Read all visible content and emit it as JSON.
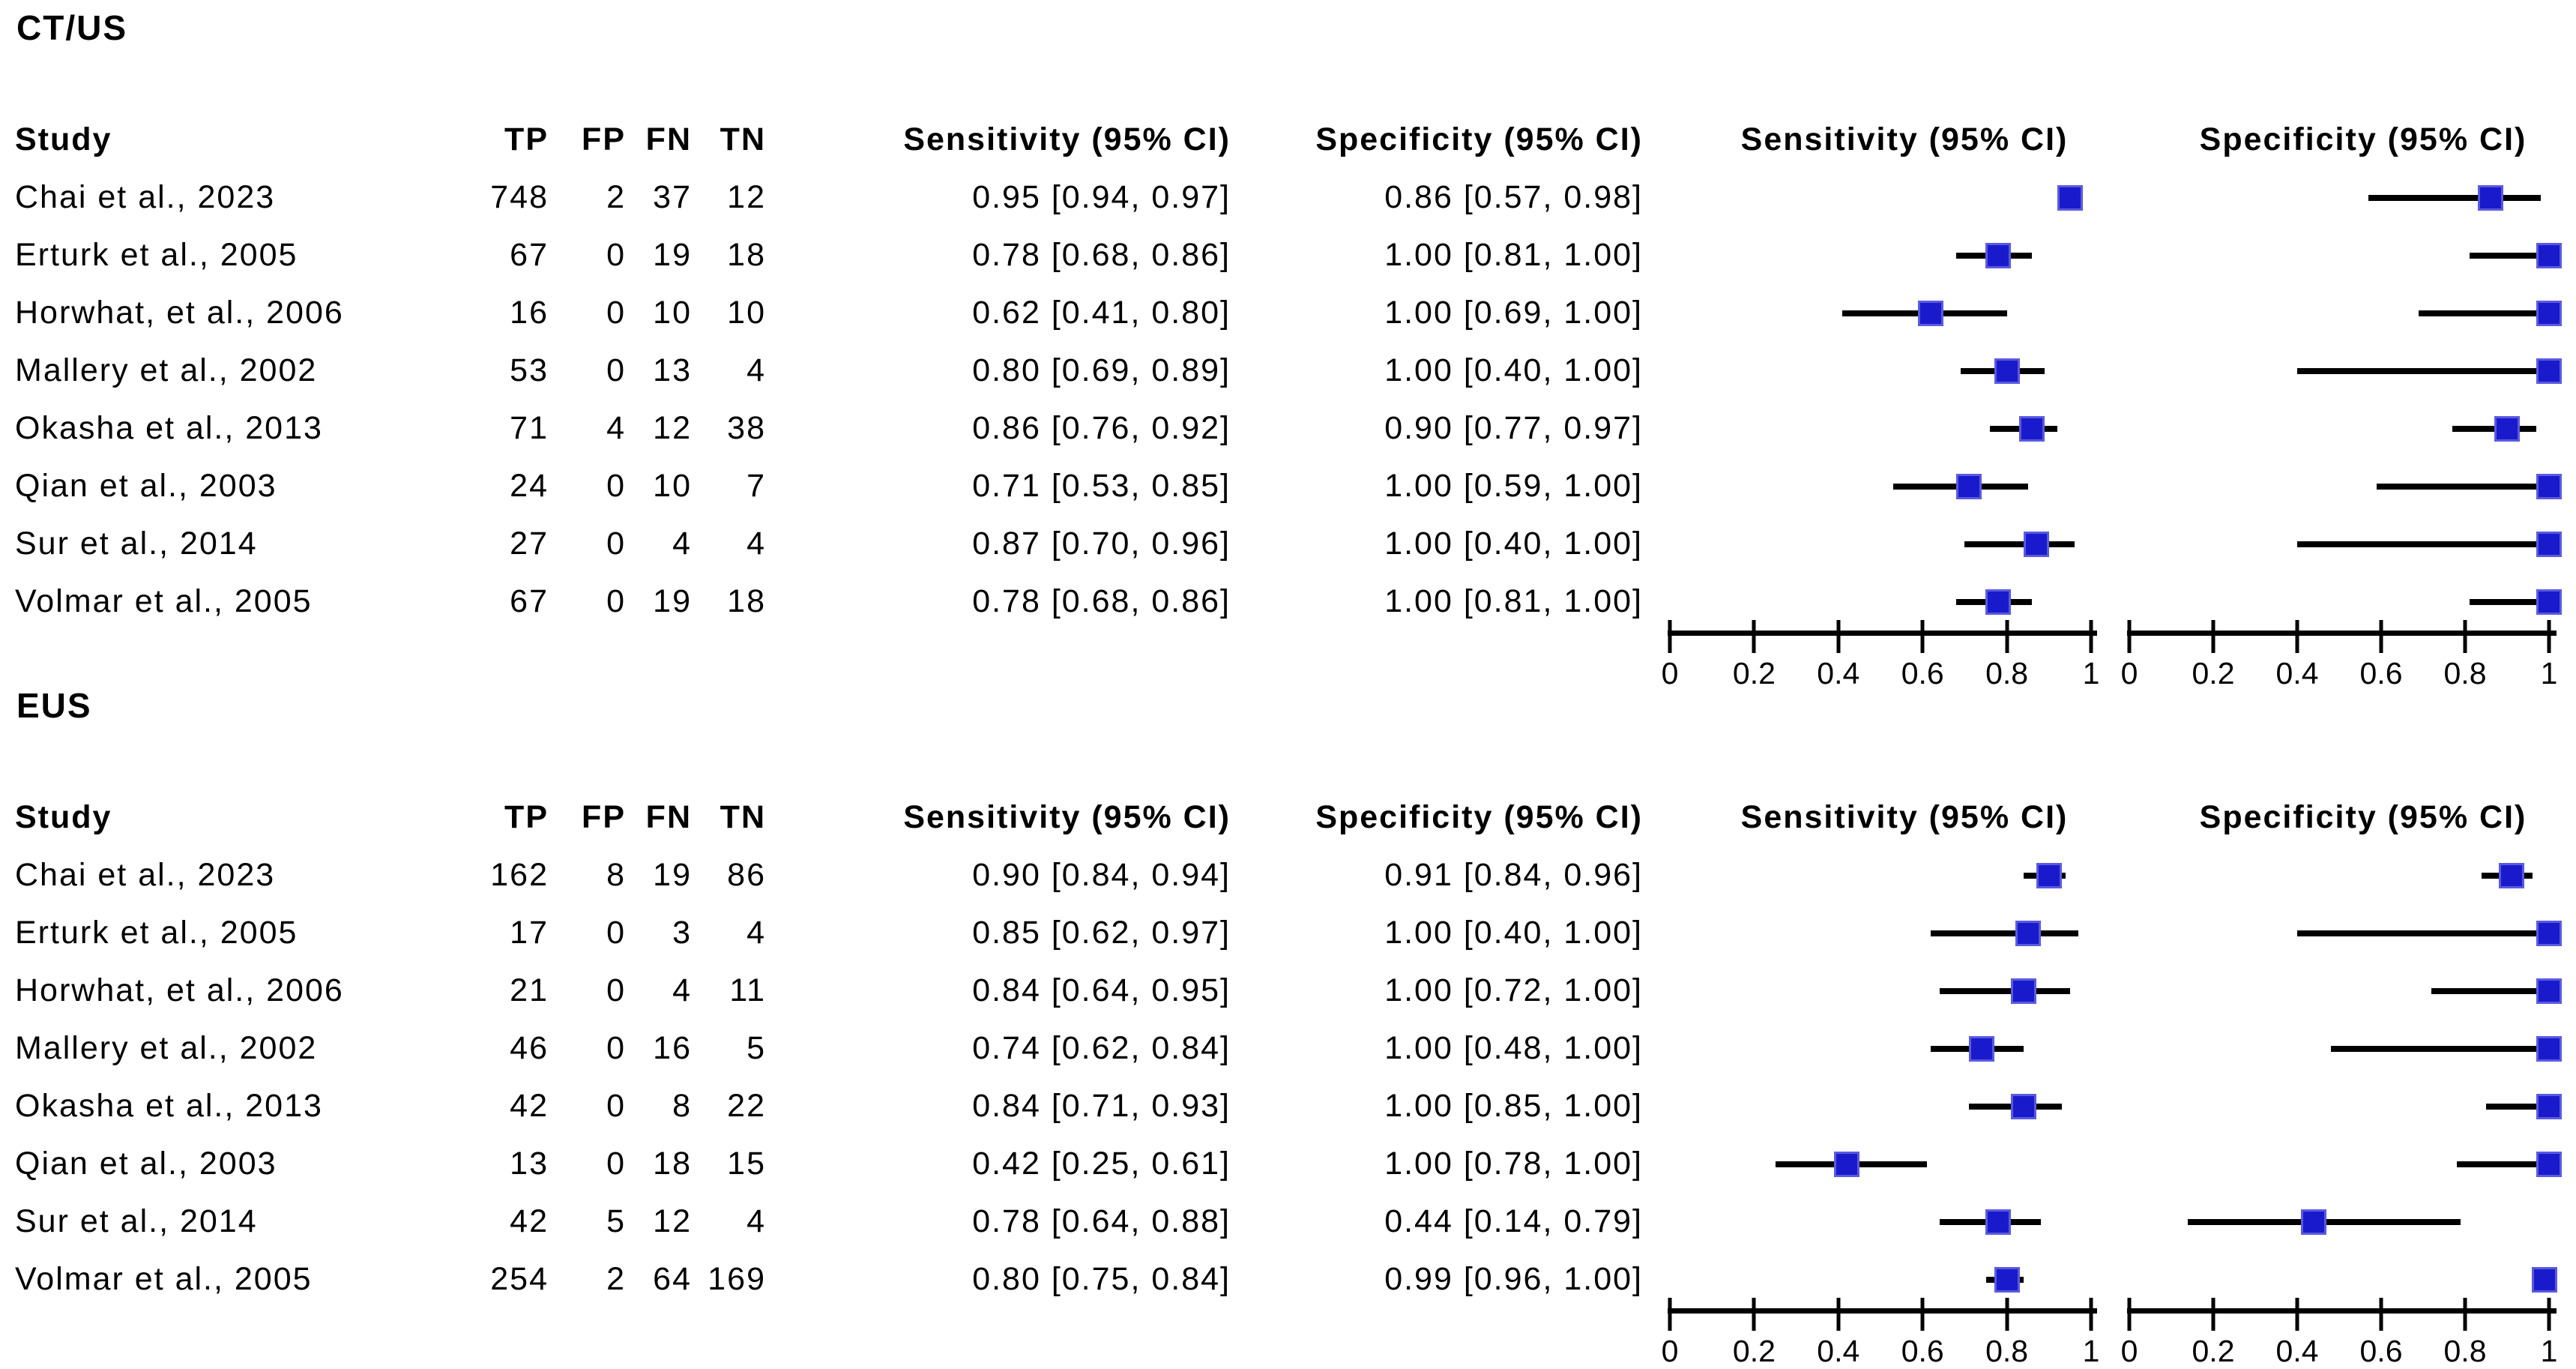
{
  "figure": {
    "marker_fill": "#1a1acd",
    "marker_border": "#5a5ae0",
    "ci_color": "#000000",
    "axis_color": "#000000",
    "text_color": "#000000"
  },
  "columns": {
    "study": "Study",
    "tp": "TP",
    "fp": "FP",
    "fn": "FN",
    "tn": "TN",
    "sens": "Sensitivity (95% CI)",
    "spec": "Specificity (95% CI)",
    "sens_plot": "Sensitivity (95% CI)",
    "spec_plot": "Specificity (95% CI)"
  },
  "chart_data": [
    {
      "type": "scatter",
      "chart_kind": "forest-plot",
      "title": "CT/US",
      "xlabel": "",
      "xlim": [
        0,
        1
      ],
      "xticks": [
        "0",
        "0.2",
        "0.4",
        "0.6",
        "0.8",
        "1"
      ],
      "grid": false,
      "legend": "none",
      "categories": [
        "Chai et al., 2023",
        "Erturk et al., 2005",
        "Horwhat, et al., 2006",
        "Mallery et al., 2002",
        "Okasha et al., 2013",
        "Qian et al., 2003",
        "Sur et al., 2014",
        "Volmar et al., 2005"
      ],
      "table_rows": [
        [
          "Chai et al., 2023",
          "748",
          "2",
          "37",
          "12",
          "0.95 [0.94, 0.97]",
          "0.86 [0.57, 0.98]"
        ],
        [
          "Erturk et al., 2005",
          "67",
          "0",
          "19",
          "18",
          "0.78 [0.68, 0.86]",
          "1.00 [0.81, 1.00]"
        ],
        [
          "Horwhat, et al., 2006",
          "16",
          "0",
          "10",
          "10",
          "0.62 [0.41, 0.80]",
          "1.00 [0.69, 1.00]"
        ],
        [
          "Mallery et al., 2002",
          "53",
          "0",
          "13",
          "4",
          "0.80 [0.69, 0.89]",
          "1.00 [0.40, 1.00]"
        ],
        [
          "Okasha et al., 2013",
          "71",
          "4",
          "12",
          "38",
          "0.86 [0.76, 0.92]",
          "0.90 [0.77, 0.97]"
        ],
        [
          "Qian et al., 2003",
          "24",
          "0",
          "10",
          "7",
          "0.71 [0.53, 0.85]",
          "1.00 [0.59, 1.00]"
        ],
        [
          "Sur et al., 2014",
          "27",
          "0",
          "4",
          "4",
          "0.87 [0.70, 0.96]",
          "1.00 [0.40, 1.00]"
        ],
        [
          "Volmar et al., 2005",
          "67",
          "0",
          "19",
          "18",
          "0.78 [0.68, 0.86]",
          "1.00 [0.81, 1.00]"
        ]
      ],
      "series": [
        {
          "name": "Sensitivity (95% CI)",
          "values": [
            0.95,
            0.78,
            0.62,
            0.8,
            0.86,
            0.71,
            0.87,
            0.78
          ],
          "ci_lower": [
            0.94,
            0.68,
            0.41,
            0.69,
            0.76,
            0.53,
            0.7,
            0.68
          ],
          "ci_upper": [
            0.97,
            0.86,
            0.8,
            0.89,
            0.92,
            0.85,
            0.96,
            0.86
          ]
        },
        {
          "name": "Specificity (95% CI)",
          "values": [
            0.86,
            1.0,
            1.0,
            1.0,
            0.9,
            1.0,
            1.0,
            1.0
          ],
          "ci_lower": [
            0.57,
            0.81,
            0.69,
            0.4,
            0.77,
            0.59,
            0.4,
            0.81
          ],
          "ci_upper": [
            0.98,
            1.0,
            1.0,
            1.0,
            0.97,
            1.0,
            1.0,
            1.0
          ]
        }
      ]
    },
    {
      "type": "scatter",
      "chart_kind": "forest-plot",
      "title": "EUS",
      "xlabel": "",
      "xlim": [
        0,
        1
      ],
      "xticks": [
        "0",
        "0.2",
        "0.4",
        "0.6",
        "0.8",
        "1"
      ],
      "grid": false,
      "legend": "none",
      "categories": [
        "Chai et al., 2023",
        "Erturk et al., 2005",
        "Horwhat, et al., 2006",
        "Mallery et al., 2002",
        "Okasha et al., 2013",
        "Qian et al., 2003",
        "Sur et al., 2014",
        "Volmar et al., 2005"
      ],
      "table_rows": [
        [
          "Chai et al., 2023",
          "162",
          "8",
          "19",
          "86",
          "0.90 [0.84, 0.94]",
          "0.91 [0.84, 0.96]"
        ],
        [
          "Erturk et al., 2005",
          "17",
          "0",
          "3",
          "4",
          "0.85 [0.62, 0.97]",
          "1.00 [0.40, 1.00]"
        ],
        [
          "Horwhat, et al., 2006",
          "21",
          "0",
          "4",
          "11",
          "0.84 [0.64, 0.95]",
          "1.00 [0.72, 1.00]"
        ],
        [
          "Mallery et al., 2002",
          "46",
          "0",
          "16",
          "5",
          "0.74 [0.62, 0.84]",
          "1.00 [0.48, 1.00]"
        ],
        [
          "Okasha et al., 2013",
          "42",
          "0",
          "8",
          "22",
          "0.84 [0.71, 0.93]",
          "1.00 [0.85, 1.00]"
        ],
        [
          "Qian et al., 2003",
          "13",
          "0",
          "18",
          "15",
          "0.42 [0.25, 0.61]",
          "1.00 [0.78, 1.00]"
        ],
        [
          "Sur et al., 2014",
          "42",
          "5",
          "12",
          "4",
          "0.78 [0.64, 0.88]",
          "0.44 [0.14, 0.79]"
        ],
        [
          "Volmar et al., 2005",
          "254",
          "2",
          "64",
          "169",
          "0.80 [0.75, 0.84]",
          "0.99 [0.96, 1.00]"
        ]
      ],
      "series": [
        {
          "name": "Sensitivity (95% CI)",
          "values": [
            0.9,
            0.85,
            0.84,
            0.74,
            0.84,
            0.42,
            0.78,
            0.8
          ],
          "ci_lower": [
            0.84,
            0.62,
            0.64,
            0.62,
            0.71,
            0.25,
            0.64,
            0.75
          ],
          "ci_upper": [
            0.94,
            0.97,
            0.95,
            0.84,
            0.93,
            0.61,
            0.88,
            0.84
          ]
        },
        {
          "name": "Specificity (95% CI)",
          "values": [
            0.91,
            1.0,
            1.0,
            1.0,
            1.0,
            1.0,
            0.44,
            0.99
          ],
          "ci_lower": [
            0.84,
            0.4,
            0.72,
            0.48,
            0.85,
            0.78,
            0.14,
            0.96
          ],
          "ci_upper": [
            0.96,
            1.0,
            1.0,
            1.0,
            1.0,
            1.0,
            0.79,
            1.0
          ]
        }
      ]
    }
  ]
}
